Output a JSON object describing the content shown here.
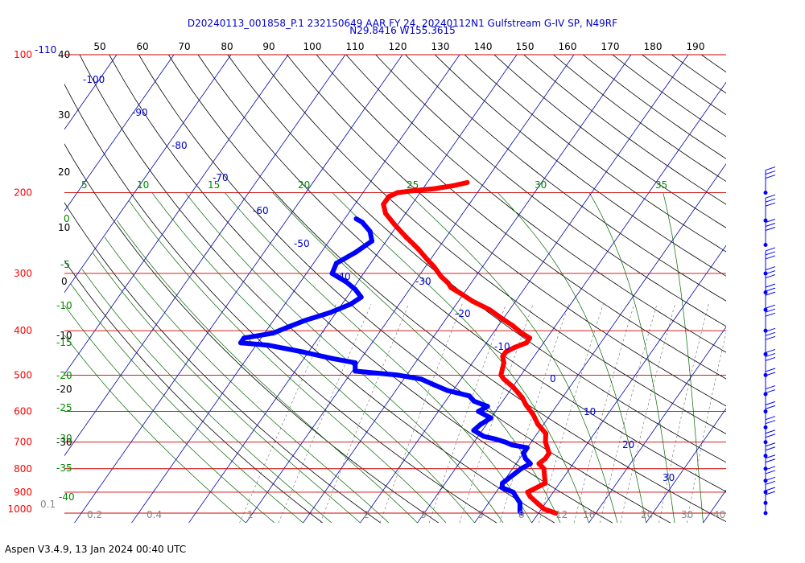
{
  "header": {
    "title_line1": "D20240113_001858_P.1 232150649 AAR FY 24, 20240112N1 Gulfstream G-IV SP, N49RF",
    "title_line2": "N29.8416 W155.3615"
  },
  "footer": {
    "text": "Aspen V3.4.9, 13 Jan 2024  00:40 UTC"
  },
  "colors": {
    "temperature": "#ff0000",
    "dewpoint": "#0000ff",
    "isobar": "#cc0000",
    "isotherm": "#0000aa",
    "dry_adiabat": "#000000",
    "moist_adiabat": "#006600",
    "mixing_ratio": "#444444"
  },
  "chart_data": {
    "type": "skew-t",
    "title": "D20240113_001858_P.1 232150649 AAR FY 24, 20240112N1 Gulfstream G-IV SP, N49RF",
    "subtitle": "N29.8416 W155.3615",
    "pressure_range_hpa": [
      1000,
      100
    ],
    "pressure_scale": "log",
    "pressure_ticks": [
      "1000",
      "900",
      "800",
      "700",
      "600",
      "500",
      "400",
      "300",
      "200",
      "100"
    ],
    "pressure_tick_extra": "-110",
    "pressure_levels": [
      1000,
      900,
      800,
      700,
      600,
      500,
      400,
      300,
      200,
      100
    ],
    "isotherm_labels": [
      "-100",
      "-90",
      "-80",
      "-70",
      "-60",
      "-50",
      "-40",
      "-30",
      "-20",
      "-10",
      "0",
      "10",
      "20",
      "30"
    ],
    "dry_adiabat_labels_top": [
      "50",
      "60",
      "70",
      "80",
      "90",
      "100",
      "110",
      "120",
      "130",
      "140",
      "150",
      "160",
      "170",
      "180",
      "190"
    ],
    "moist_adiabat_labels": [
      "5",
      "10",
      "15",
      "20",
      "25",
      "30",
      "35"
    ],
    "left_scale_labels": [
      "40",
      "30",
      "20",
      "10",
      "0",
      "-10",
      "-20",
      "-30"
    ],
    "left_green_labels": [
      "0",
      "-5",
      "-10",
      "-15",
      "-20",
      "-25",
      "-30",
      "-35",
      "-40"
    ],
    "mixing_ratio_labels": [
      "0.1",
      "0.2",
      "0.4",
      "1",
      "2",
      "3",
      "5",
      "8",
      "12",
      "16",
      "20",
      "30",
      "40"
    ],
    "series": [
      {
        "name": "Temperature",
        "color": "#ff0000",
        "points": [
          [
            1000,
            13.0
          ],
          [
            980,
            10.5
          ],
          [
            950,
            8.5
          ],
          [
            920,
            6.5
          ],
          [
            900,
            5.5
          ],
          [
            880,
            6.5
          ],
          [
            860,
            7.5
          ],
          [
            830,
            6.5
          ],
          [
            800,
            5.5
          ],
          [
            780,
            4.0
          ],
          [
            760,
            4.5
          ],
          [
            740,
            4.5
          ],
          [
            720,
            3.5
          ],
          [
            700,
            2.5
          ],
          [
            670,
            1.5
          ],
          [
            640,
            -1.0
          ],
          [
            610,
            -3.0
          ],
          [
            580,
            -5.5
          ],
          [
            560,
            -7.0
          ],
          [
            530,
            -10.0
          ],
          [
            510,
            -12.5
          ],
          [
            500,
            -13.5
          ],
          [
            485,
            -14.0
          ],
          [
            470,
            -14.5
          ],
          [
            455,
            -15.5
          ],
          [
            445,
            -15.5
          ],
          [
            435,
            -14.5
          ],
          [
            425,
            -13.0
          ],
          [
            415,
            -13.0
          ],
          [
            405,
            -15.0
          ],
          [
            390,
            -17.5
          ],
          [
            375,
            -20.5
          ],
          [
            360,
            -23.5
          ],
          [
            345,
            -27.5
          ],
          [
            332,
            -30.5
          ],
          [
            322,
            -33.0
          ],
          [
            315,
            -34.0
          ],
          [
            305,
            -36.0
          ],
          [
            290,
            -38.5
          ],
          [
            280,
            -40.5
          ],
          [
            265,
            -43.5
          ],
          [
            250,
            -47.0
          ],
          [
            235,
            -50.5
          ],
          [
            222,
            -53.5
          ],
          [
            212,
            -55.0
          ],
          [
            204,
            -55.0
          ],
          [
            200,
            -54.0
          ],
          [
            198,
            -51.5
          ],
          [
            196,
            -48.0
          ],
          [
            193,
            -45.0
          ],
          [
            190,
            -43.0
          ]
        ]
      },
      {
        "name": "Dewpoint",
        "color": "#0000ff",
        "points": [
          [
            1000,
            7.0
          ],
          [
            990,
            6.5
          ],
          [
            970,
            6.0
          ],
          [
            950,
            5.5
          ],
          [
            920,
            4.0
          ],
          [
            900,
            3.0
          ],
          [
            880,
            0.5
          ],
          [
            860,
            0.0
          ],
          [
            840,
            0.5
          ],
          [
            820,
            1.0
          ],
          [
            800,
            1.5
          ],
          [
            780,
            2.5
          ],
          [
            760,
            1.0
          ],
          [
            740,
            0.0
          ],
          [
            720,
            0.0
          ],
          [
            710,
            -3.0
          ],
          [
            700,
            -4.5
          ],
          [
            690,
            -6.5
          ],
          [
            680,
            -9.0
          ],
          [
            660,
            -11.5
          ],
          [
            640,
            -11.0
          ],
          [
            620,
            -10.0
          ],
          [
            600,
            -13.0
          ],
          [
            585,
            -12.0
          ],
          [
            570,
            -15.0
          ],
          [
            555,
            -16.5
          ],
          [
            540,
            -21.0
          ],
          [
            525,
            -24.0
          ],
          [
            510,
            -27.0
          ],
          [
            500,
            -31.5
          ],
          [
            490,
            -39.5
          ],
          [
            470,
            -40.5
          ],
          [
            460,
            -45.0
          ],
          [
            445,
            -51.0
          ],
          [
            430,
            -58.0
          ],
          [
            425,
            -63.0
          ],
          [
            415,
            -63.0
          ],
          [
            405,
            -58.5
          ],
          [
            392,
            -56.5
          ],
          [
            380,
            -54.5
          ],
          [
            365,
            -51.0
          ],
          [
            350,
            -48.5
          ],
          [
            338,
            -47.5
          ],
          [
            325,
            -49.5
          ],
          [
            313,
            -52.0
          ],
          [
            300,
            -55.5
          ],
          [
            285,
            -56.0
          ],
          [
            270,
            -54.0
          ],
          [
            255,
            -52.5
          ],
          [
            243,
            -54.0
          ],
          [
            232,
            -56.5
          ],
          [
            228,
            -58.0
          ]
        ]
      }
    ],
    "wind_barb_column": true,
    "grid": true
  }
}
